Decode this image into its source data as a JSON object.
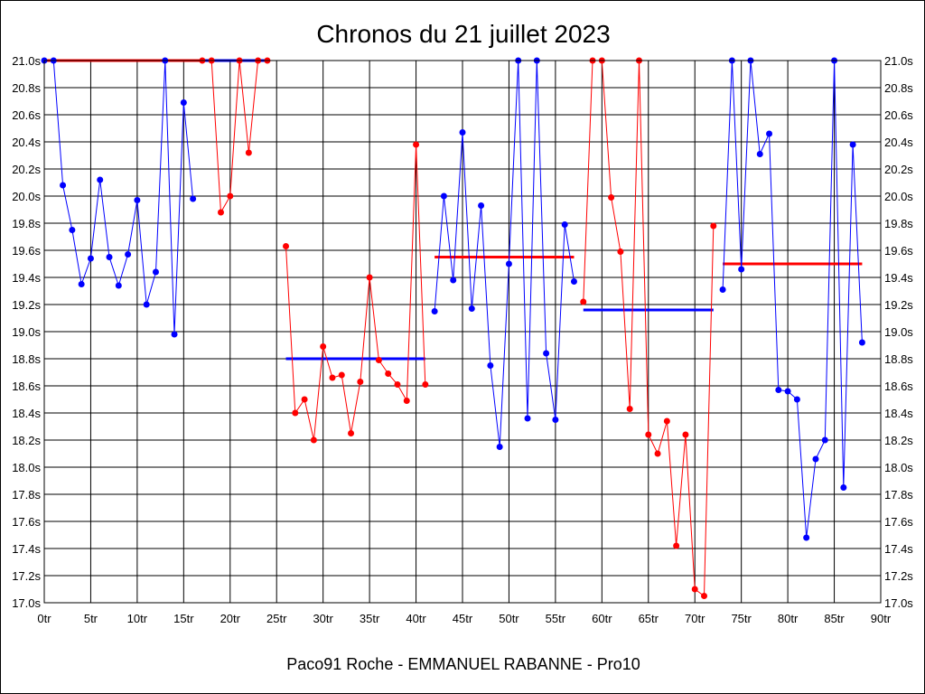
{
  "chart_data": {
    "type": "line",
    "title": "Chronos du 21 juillet 2023",
    "footer": "Paco91 Roche - EMMANUEL RABANNE - Pro10",
    "xlim": [
      0,
      90
    ],
    "ylim": [
      17.0,
      21.0
    ],
    "x_ticks": [
      0,
      5,
      10,
      15,
      20,
      25,
      30,
      35,
      40,
      45,
      50,
      55,
      60,
      65,
      70,
      75,
      80,
      85,
      90
    ],
    "x_tick_labels": [
      "0tr",
      "5tr",
      "10tr",
      "15tr",
      "20tr",
      "25tr",
      "30tr",
      "35tr",
      "40tr",
      "45tr",
      "50tr",
      "55tr",
      "60tr",
      "65tr",
      "70tr",
      "75tr",
      "80tr",
      "85tr",
      "90tr"
    ],
    "y_ticks": [
      17.0,
      17.2,
      17.4,
      17.6,
      17.8,
      18.0,
      18.2,
      18.4,
      18.6,
      18.8,
      19.0,
      19.2,
      19.4,
      19.6,
      19.8,
      20.0,
      20.2,
      20.4,
      20.6,
      20.8,
      21.0
    ],
    "y_tick_labels": [
      "17.0s",
      "17.2s",
      "17.4s",
      "17.6s",
      "17.8s",
      "18.0s",
      "18.2s",
      "18.4s",
      "18.6s",
      "18.8s",
      "19.0s",
      "19.2s",
      "19.4s",
      "19.6s",
      "19.8s",
      "20.0s",
      "20.2s",
      "20.4s",
      "20.6s",
      "20.8s",
      "21.0s"
    ],
    "grid": true,
    "colors": {
      "blue": "#0000ff",
      "red": "#ff0000"
    },
    "series": [
      {
        "color": "blue",
        "points": [
          [
            0,
            21.0
          ],
          [
            1,
            21.0
          ],
          [
            2,
            20.08
          ],
          [
            3,
            19.75
          ],
          [
            4,
            19.35
          ],
          [
            5,
            19.54
          ],
          [
            6,
            20.12
          ],
          [
            7,
            19.55
          ],
          [
            8,
            19.34
          ],
          [
            9,
            19.57
          ],
          [
            10,
            19.97
          ],
          [
            11,
            19.2
          ],
          [
            12,
            19.44
          ],
          [
            13,
            21.0
          ],
          [
            14,
            18.98
          ],
          [
            15,
            20.69
          ],
          [
            16,
            19.98
          ]
        ]
      },
      {
        "color": "red",
        "points": [
          [
            17,
            21.0
          ],
          [
            18,
            21.0
          ],
          [
            19,
            19.88
          ],
          [
            20,
            20.0
          ],
          [
            21,
            21.0
          ],
          [
            22,
            20.32
          ],
          [
            23,
            21.0
          ],
          [
            24,
            21.0
          ]
        ]
      },
      {
        "color": "red",
        "points": [
          [
            26,
            19.63
          ],
          [
            27,
            18.4
          ],
          [
            28,
            18.5
          ],
          [
            29,
            18.2
          ],
          [
            30,
            18.89
          ],
          [
            31,
            18.66
          ],
          [
            32,
            18.68
          ],
          [
            33,
            18.25
          ],
          [
            34,
            18.63
          ],
          [
            35,
            19.4
          ],
          [
            36,
            18.79
          ],
          [
            37,
            18.69
          ],
          [
            38,
            18.61
          ],
          [
            39,
            18.49
          ],
          [
            40,
            20.38
          ],
          [
            41,
            18.61
          ]
        ]
      },
      {
        "color": "blue",
        "points": [
          [
            42,
            19.15
          ],
          [
            43,
            20.0
          ],
          [
            44,
            19.38
          ],
          [
            45,
            20.47
          ],
          [
            46,
            19.17
          ],
          [
            47,
            19.93
          ],
          [
            48,
            18.75
          ],
          [
            49,
            18.15
          ],
          [
            50,
            19.5
          ],
          [
            51,
            21.0
          ],
          [
            52,
            18.36
          ],
          [
            53,
            21.0
          ],
          [
            54,
            18.84
          ],
          [
            55,
            18.35
          ],
          [
            56,
            19.79
          ],
          [
            57,
            19.37
          ]
        ]
      },
      {
        "color": "red",
        "points": [
          [
            58,
            19.22
          ],
          [
            59,
            21.0
          ],
          [
            60,
            21.0
          ],
          [
            61,
            19.99
          ],
          [
            62,
            19.59
          ],
          [
            63,
            18.43
          ],
          [
            64,
            21.0
          ],
          [
            65,
            18.24
          ],
          [
            66,
            18.1
          ],
          [
            67,
            18.34
          ],
          [
            68,
            17.42
          ],
          [
            69,
            18.24
          ],
          [
            70,
            17.1
          ],
          [
            71,
            17.05
          ],
          [
            72,
            19.78
          ]
        ]
      },
      {
        "color": "blue",
        "points": [
          [
            73,
            19.31
          ],
          [
            74,
            21.0
          ],
          [
            75,
            19.46
          ],
          [
            76,
            21.0
          ],
          [
            77,
            20.31
          ],
          [
            78,
            20.46
          ],
          [
            79,
            18.57
          ],
          [
            80,
            18.56
          ],
          [
            81,
            18.5
          ],
          [
            82,
            17.48
          ],
          [
            83,
            18.06
          ],
          [
            84,
            18.2
          ],
          [
            85,
            21.0
          ],
          [
            86,
            17.85
          ],
          [
            87,
            20.38
          ],
          [
            88,
            18.92
          ]
        ]
      }
    ],
    "reference_lines": [
      {
        "color": "red",
        "x_start": 0,
        "x_end": 17,
        "y": 21.0
      },
      {
        "color": "blue",
        "x_start": 17,
        "x_end": 24,
        "y": 21.0
      },
      {
        "color": "blue",
        "x_start": 26,
        "x_end": 41,
        "y": 18.8
      },
      {
        "color": "red",
        "x_start": 42,
        "x_end": 57,
        "y": 19.55
      },
      {
        "color": "blue",
        "x_start": 58,
        "x_end": 72,
        "y": 19.16
      },
      {
        "color": "red",
        "x_start": 73,
        "x_end": 88,
        "y": 19.5
      }
    ]
  }
}
